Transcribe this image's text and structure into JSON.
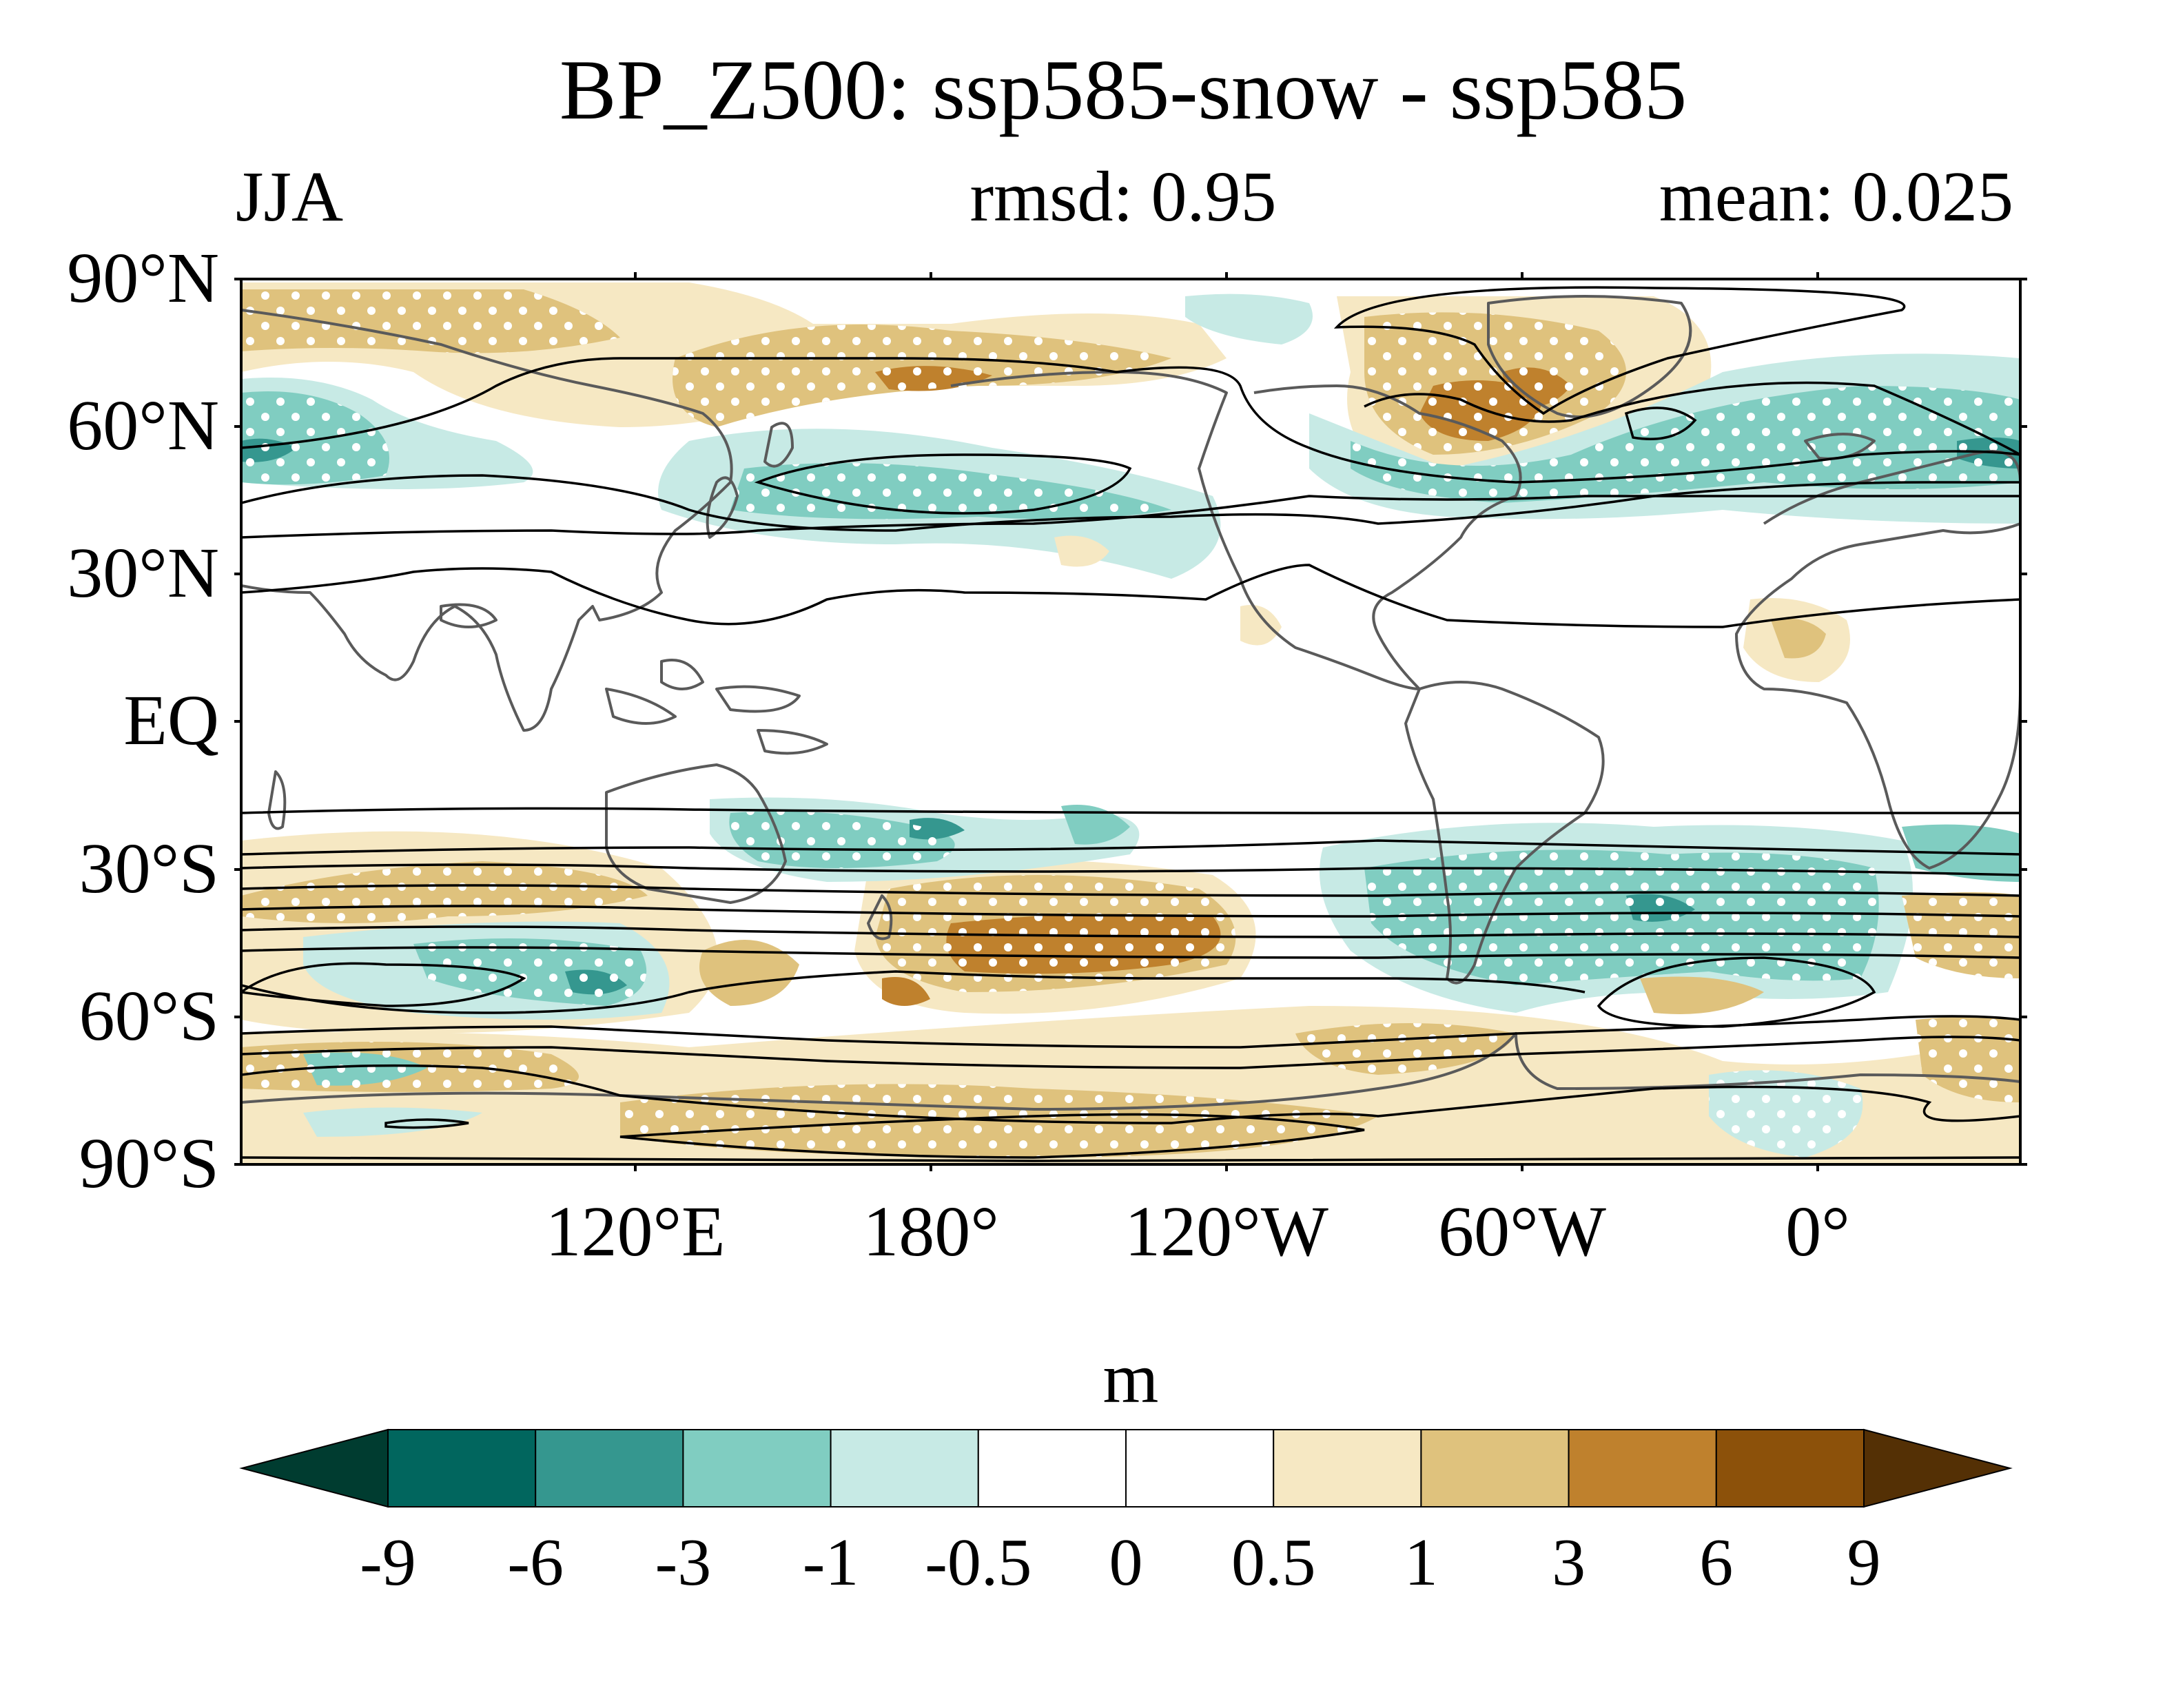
{
  "title": "BP_Z500: ssp585-snow - ssp585",
  "subtitle_left": "JJA",
  "subtitle_center": "rmsd: 0.95",
  "subtitle_right": "mean: 0.025",
  "lat_labels": [
    "90°N",
    "60°N",
    "30°N",
    "EQ",
    "30°S",
    "60°S",
    "90°S"
  ],
  "lon_labels": [
    "120°E",
    "180°",
    "120°W",
    "60°W",
    "0°"
  ],
  "colorbar": {
    "unit_label": "m",
    "levels": [
      "-9",
      "-6",
      "-3",
      "-1",
      "-0.5",
      "0",
      "0.5",
      "1",
      "3",
      "6",
      "9"
    ],
    "colors": [
      "#003c30",
      "#01665e",
      "#35978f",
      "#80cdc1",
      "#c7eae5",
      "#ffffff",
      "#ffffff",
      "#f6e8c3",
      "#dfc27d",
      "#bf812d",
      "#8c510a",
      "#543005"
    ]
  },
  "map": {
    "projection": "cylindrical equidistant",
    "central_longitude": "Pacific-centred (~160°W)",
    "stippling": "white dots mark significant anomalies",
    "contours": "black lines show climatological Z500"
  }
}
